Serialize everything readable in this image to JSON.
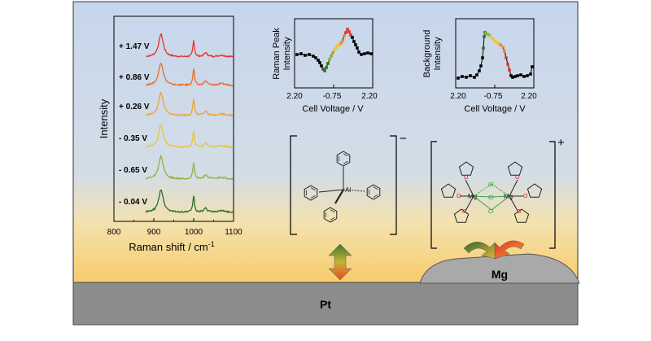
{
  "raman_spectra": {
    "ylabel": "Intensity",
    "xlabel_main": "Raman shift / cm",
    "xlabel_sup": "-1",
    "xticks": [
      "800",
      "900",
      "1000",
      "1100"
    ],
    "traces": [
      {
        "label": "+ 1.47 V",
        "color": "#e8322a"
      },
      {
        "label": "+ 0.86 V",
        "color": "#ef6a25"
      },
      {
        "label": "+ 0.26 V",
        "color": "#f0a22c"
      },
      {
        "label": "- 0.35 V",
        "color": "#e8c43c"
      },
      {
        "label": "- 0.65 V",
        "color": "#9aae3a"
      },
      {
        "label": "- 0.04 V",
        "color": "#2f6b2a"
      }
    ]
  },
  "peak_plot": {
    "ylabel_line1": "Raman Peak",
    "ylabel_line2": "Intensity",
    "xlabel": "Cell Voltage / V",
    "xticks": [
      "2.20",
      "-0.75",
      "2.20"
    ]
  },
  "background_plot": {
    "ylabel_line1": "Background",
    "ylabel_line2": "Intensity",
    "xlabel": "Cell Voltage / V",
    "xticks": [
      "2.20",
      "-0.75",
      "2.20"
    ]
  },
  "anion": {
    "charge": "−",
    "center_atom": "Al"
  },
  "cation": {
    "charge": "+",
    "metal_left": "Mg",
    "metal_right": "Mg",
    "chloride_top": "Cl",
    "chloride_mid": "Cl",
    "chloride_bottom": "Cl",
    "ether_o": "O"
  },
  "electrode": {
    "label": "Pt",
    "color": "#8c8c8c"
  },
  "deposit": {
    "label": "Mg",
    "color": "#a9a9a9"
  },
  "colors": {
    "bg_top": "#c6d6ec",
    "bg_bottom": "#f8d47a"
  }
}
